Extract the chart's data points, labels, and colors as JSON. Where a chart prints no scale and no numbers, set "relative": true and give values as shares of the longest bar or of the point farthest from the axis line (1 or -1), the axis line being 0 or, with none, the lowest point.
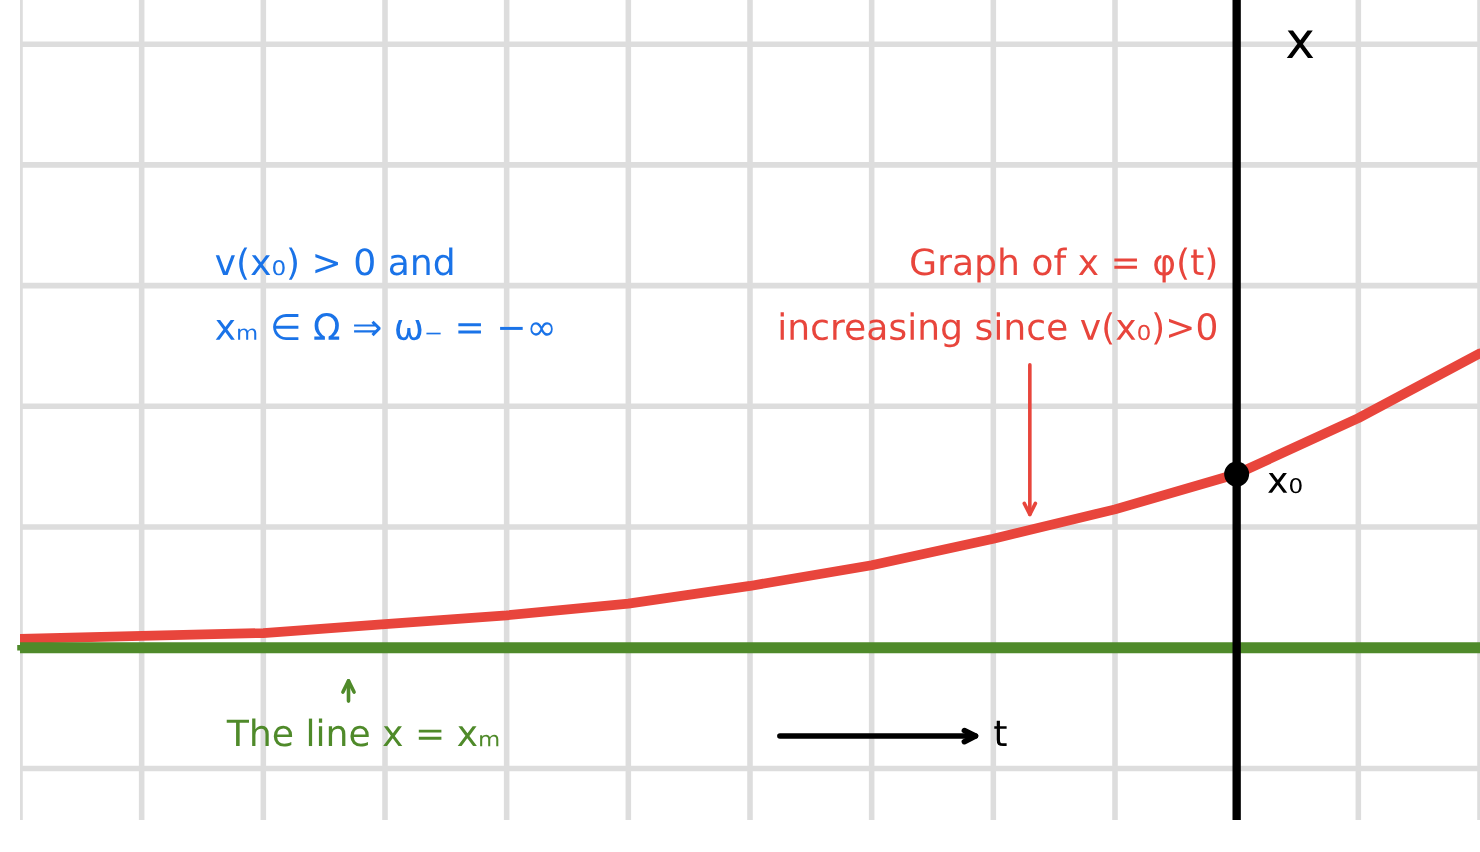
{
  "chart_data": {
    "type": "line",
    "relative": true,
    "categories": [
      null,
      null,
      null,
      null,
      null,
      null,
      null,
      null,
      null,
      null,
      null,
      null,
      null
    ],
    "series": [
      {
        "color": "#e8453c",
        "values": [
          0.03,
          0.04,
          0.05,
          0.08,
          0.11,
          0.15,
          0.21,
          0.28,
          0.37,
          0.47,
          0.59,
          0.78,
          1
        ]
      },
      {
        "color": "#4f8a2a",
        "values": [
          0,
          0,
          0,
          0,
          0,
          0,
          0,
          0,
          0,
          0,
          0,
          0,
          0
        ]
      }
    ],
    "annotations": [
      "v(x₀) > 0 and",
      "xₘ ∈ Ω ⇒ ω₋ = −∞",
      "Graph of x = φ(t)",
      "increasing since v(x₀)>0",
      "x₀",
      "The line x = xₘ",
      "t",
      "x"
    ],
    "grid": true,
    "tick_labels": false,
    "marker": "none",
    "line_style": "solid"
  }
}
